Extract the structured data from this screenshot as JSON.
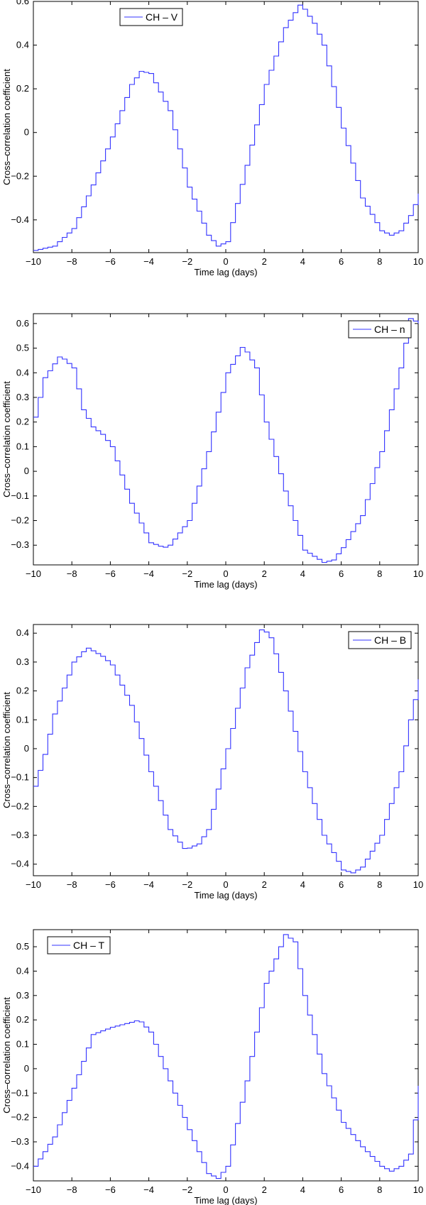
{
  "figure": {
    "panel_count": 4
  },
  "chart_data": [
    {
      "type": "line",
      "step": true,
      "title": "",
      "xlabel": "Time lag (days)",
      "ylabel": "Cross–correlation coefficient",
      "xlim": [
        -10,
        10
      ],
      "ylim": [
        -0.55,
        0.6
      ],
      "xticks": [
        -10,
        -8,
        -6,
        -4,
        -2,
        0,
        2,
        4,
        6,
        8,
        10
      ],
      "yticks": [
        -0.4,
        -0.2,
        0,
        0.2,
        0.4,
        0.6
      ],
      "xtick_labels": [
        "−10",
        "−8",
        "−6",
        "−4",
        "−2",
        "0",
        "2",
        "4",
        "6",
        "8",
        "10"
      ],
      "ytick_labels": [
        "−0.4",
        "−0.2",
        "0",
        "0.2",
        "0.4",
        "0.6"
      ],
      "legend_position": "top-left",
      "line_color": "#3333ff",
      "series": [
        {
          "name": "CH – V",
          "x": [
            -10,
            -9,
            -8,
            -7,
            -6,
            -5,
            -4.5,
            -4,
            -3,
            -2,
            -1,
            -0.5,
            0,
            1,
            2,
            3,
            3.8,
            4.5,
            5,
            6,
            7,
            8,
            8.5,
            9,
            9.5,
            10
          ],
          "y": [
            -0.54,
            -0.52,
            -0.44,
            -0.24,
            -0.02,
            0.22,
            0.28,
            0.27,
            0.1,
            -0.25,
            -0.47,
            -0.52,
            -0.5,
            -0.15,
            0.22,
            0.48,
            0.59,
            0.5,
            0.4,
            0.02,
            -0.3,
            -0.45,
            -0.47,
            -0.45,
            -0.38,
            -0.28
          ]
        }
      ]
    },
    {
      "type": "line",
      "step": true,
      "title": "",
      "xlabel": "Time lag (days)",
      "ylabel": "Cross–correlation coefficient",
      "xlim": [
        -10,
        10
      ],
      "ylim": [
        -0.38,
        0.64
      ],
      "xticks": [
        -10,
        -8,
        -6,
        -4,
        -2,
        0,
        2,
        4,
        6,
        8,
        10
      ],
      "yticks": [
        -0.3,
        -0.2,
        -0.1,
        0,
        0.1,
        0.2,
        0.3,
        0.4,
        0.5,
        0.6
      ],
      "xtick_labels": [
        "−10",
        "−8",
        "−6",
        "−4",
        "−2",
        "0",
        "2",
        "4",
        "6",
        "8",
        "10"
      ],
      "ytick_labels": [
        "−0.3",
        "−0.2",
        "−0.1",
        "0",
        "0.1",
        "0.2",
        "0.3",
        "0.4",
        "0.5",
        "0.6"
      ],
      "legend_position": "top-right",
      "line_color": "#3333ff",
      "series": [
        {
          "name": "CH – n",
          "x": [
            -10,
            -9.5,
            -8.7,
            -8,
            -7.5,
            -7,
            -6.5,
            -6,
            -5,
            -4,
            -3.3,
            -3,
            -2,
            -1,
            0,
            0.8,
            1.5,
            2,
            3,
            4,
            5,
            5.5,
            6,
            7,
            8,
            9,
            9.5,
            10
          ],
          "y": [
            0.22,
            0.38,
            0.47,
            0.42,
            0.25,
            0.18,
            0.15,
            0.1,
            -0.13,
            -0.29,
            -0.31,
            -0.3,
            -0.2,
            0.08,
            0.4,
            0.51,
            0.42,
            0.2,
            -0.08,
            -0.32,
            -0.37,
            -0.36,
            -0.31,
            -0.18,
            0.08,
            0.42,
            0.62,
            0.6
          ]
        }
      ]
    },
    {
      "type": "line",
      "step": true,
      "title": "",
      "xlabel": "Time lag (days)",
      "ylabel": "Cross–correlation coefficient",
      "xlim": [
        -10,
        10
      ],
      "ylim": [
        -0.44,
        0.43
      ],
      "xticks": [
        -10,
        -8,
        -6,
        -4,
        -2,
        0,
        2,
        4,
        6,
        8,
        10
      ],
      "yticks": [
        -0.4,
        -0.3,
        -0.2,
        -0.1,
        0,
        0.1,
        0.2,
        0.3,
        0.4
      ],
      "xtick_labels": [
        "−10",
        "−8",
        "−6",
        "−4",
        "−2",
        "0",
        "2",
        "4",
        "6",
        "8",
        "10"
      ],
      "ytick_labels": [
        "−0.4",
        "−0.3",
        "−0.2",
        "−0.1",
        "0",
        "0.1",
        "0.2",
        "0.3",
        "0.4"
      ],
      "legend_position": "top-right",
      "line_color": "#3333ff",
      "series": [
        {
          "name": "CH – B",
          "x": [
            -10,
            -9.5,
            -9,
            -8,
            -7.3,
            -6.5,
            -6,
            -5,
            -4,
            -3,
            -2.2,
            -1.5,
            -1,
            0,
            1,
            1.8,
            2.3,
            3,
            4,
            5,
            6,
            6.5,
            7,
            8,
            9,
            9.5,
            10
          ],
          "y": [
            -0.13,
            -0.02,
            0.12,
            0.3,
            0.35,
            0.32,
            0.29,
            0.15,
            -0.08,
            -0.28,
            -0.35,
            -0.33,
            -0.28,
            0.0,
            0.28,
            0.42,
            0.38,
            0.2,
            -0.08,
            -0.3,
            -0.42,
            -0.43,
            -0.41,
            -0.3,
            -0.08,
            0.1,
            0.24
          ]
        }
      ]
    },
    {
      "type": "line",
      "step": true,
      "title": "",
      "xlabel": "Time lag (days)",
      "ylabel": "Cross–correlation coefficient",
      "xlim": [
        -10,
        10
      ],
      "ylim": [
        -0.46,
        0.57
      ],
      "xticks": [
        -10,
        -8,
        -6,
        -4,
        -2,
        0,
        2,
        4,
        6,
        8,
        10
      ],
      "yticks": [
        -0.4,
        -0.3,
        -0.2,
        -0.1,
        0,
        0.1,
        0.2,
        0.3,
        0.4,
        0.5
      ],
      "xtick_labels": [
        "−10",
        "−8",
        "−6",
        "−4",
        "−2",
        "0",
        "2",
        "4",
        "6",
        "8",
        "10"
      ],
      "ytick_labels": [
        "−0.4",
        "−0.3",
        "−0.2",
        "−0.1",
        "0",
        "0.1",
        "0.2",
        "0.3",
        "0.4",
        "0.5"
      ],
      "legend_position": "top-left",
      "line_color": "#3333ff",
      "series": [
        {
          "name": "CH – T",
          "x": [
            -10,
            -9,
            -8,
            -7,
            -6,
            -5,
            -4.6,
            -4,
            -3,
            -2,
            -1,
            -0.5,
            0,
            1,
            2,
            3,
            3.5,
            4,
            5,
            6,
            7,
            8,
            8.5,
            9,
            9.5,
            10
          ],
          "y": [
            -0.4,
            -0.28,
            -0.08,
            0.14,
            0.17,
            0.19,
            0.2,
            0.15,
            -0.05,
            -0.25,
            -0.43,
            -0.45,
            -0.4,
            -0.05,
            0.35,
            0.55,
            0.52,
            0.3,
            -0.02,
            -0.22,
            -0.32,
            -0.4,
            -0.42,
            -0.4,
            -0.35,
            -0.07
          ]
        }
      ]
    }
  ]
}
